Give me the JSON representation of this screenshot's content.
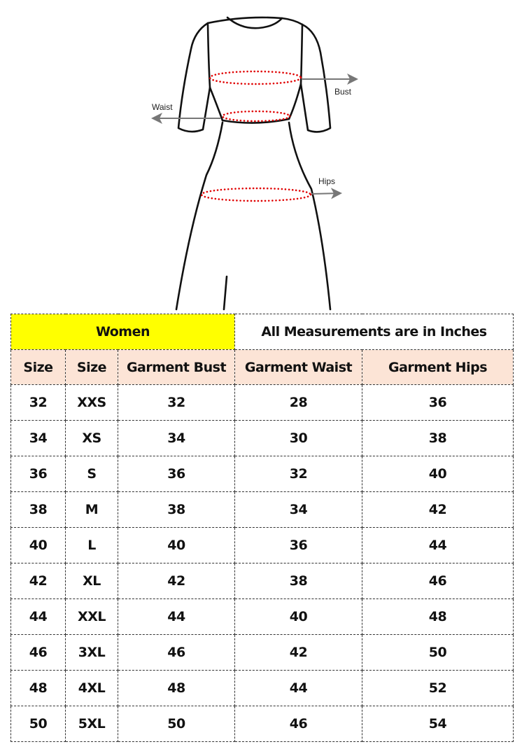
{
  "diagram": {
    "labels": {
      "bust": "Bust",
      "waist": "Waist",
      "hips": "Hips"
    },
    "colors": {
      "measure_line": "#e00000",
      "arrow": "#777777",
      "outline": "#111111"
    }
  },
  "table": {
    "group_label": "Women",
    "unit_note": "All Measurements are in Inches",
    "columns": [
      "Size",
      "Size",
      "Garment Bust",
      "Garment Waist",
      "Garment Hips"
    ],
    "rows": [
      [
        "32",
        "XXS",
        "32",
        "28",
        "36"
      ],
      [
        "34",
        "XS",
        "34",
        "30",
        "38"
      ],
      [
        "36",
        "S",
        "36",
        "32",
        "40"
      ],
      [
        "38",
        "M",
        "38",
        "34",
        "42"
      ],
      [
        "40",
        "L",
        "40",
        "36",
        "44"
      ],
      [
        "42",
        "XL",
        "42",
        "38",
        "46"
      ],
      [
        "44",
        "XXL",
        "44",
        "40",
        "48"
      ],
      [
        "46",
        "3XL",
        "46",
        "42",
        "50"
      ],
      [
        "48",
        "4XL",
        "48",
        "44",
        "52"
      ],
      [
        "50",
        "5XL",
        "50",
        "46",
        "54"
      ]
    ],
    "colors": {
      "group_bg": "#ffff00",
      "header_bg": "#fce4d6"
    }
  }
}
